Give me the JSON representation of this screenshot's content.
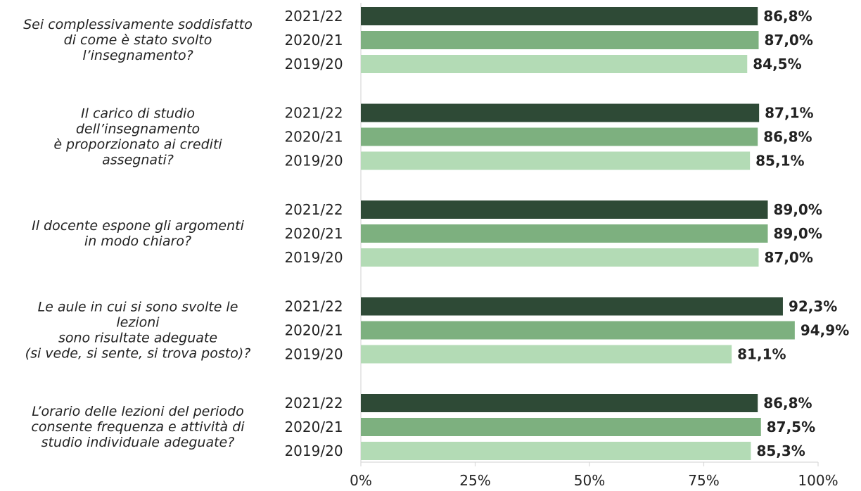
{
  "chart_data": {
    "type": "bar",
    "orientation": "horizontal",
    "xlim": [
      0,
      100
    ],
    "ticks": [
      "0%",
      "25%",
      "50%",
      "75%",
      "100%"
    ],
    "tick_values": [
      0,
      25,
      50,
      75,
      100
    ],
    "grid": false,
    "legend": "none",
    "series": [
      {
        "name": "2021/22",
        "color": "#2e4a36"
      },
      {
        "name": "2020/21",
        "color": "#7db07f"
      },
      {
        "name": "2019/20",
        "color": "#b3dbb5"
      }
    ],
    "groups": [
      {
        "question_lines": [
          "Sei complessivamente soddisfatto",
          "di come è stato svolto",
          "l’insegnamento?"
        ],
        "values": [
          86.8,
          87.0,
          84.5
        ],
        "labels": [
          "86,8%",
          "87,0%",
          "84,5%"
        ]
      },
      {
        "question_lines": [
          "Il carico di studio",
          "dell’insegnamento",
          "è proporzionato ai crediti",
          "assegnati?"
        ],
        "values": [
          87.1,
          86.8,
          85.1
        ],
        "labels": [
          "87,1%",
          "86,8%",
          "85,1%"
        ]
      },
      {
        "question_lines": [
          "Il docente espone gli argomenti",
          "in modo chiaro?"
        ],
        "values": [
          89.0,
          89.0,
          87.0
        ],
        "labels": [
          "89,0%",
          "89,0%",
          "87,0%"
        ]
      },
      {
        "question_lines": [
          "Le aule in cui si sono svolte le",
          "lezioni",
          "sono risultate adeguate",
          "(si vede, si sente, si trova posto)?"
        ],
        "values": [
          92.3,
          94.9,
          81.1
        ],
        "labels": [
          "92,3%",
          "94,9%",
          "81,1%"
        ]
      },
      {
        "question_lines": [
          "L’orario delle lezioni del periodo",
          "consente frequenza e attività di",
          "studio individuale adeguate?"
        ],
        "values": [
          86.8,
          87.5,
          85.3
        ],
        "labels": [
          "86,8%",
          "87,5%",
          "85,3%"
        ]
      }
    ]
  }
}
